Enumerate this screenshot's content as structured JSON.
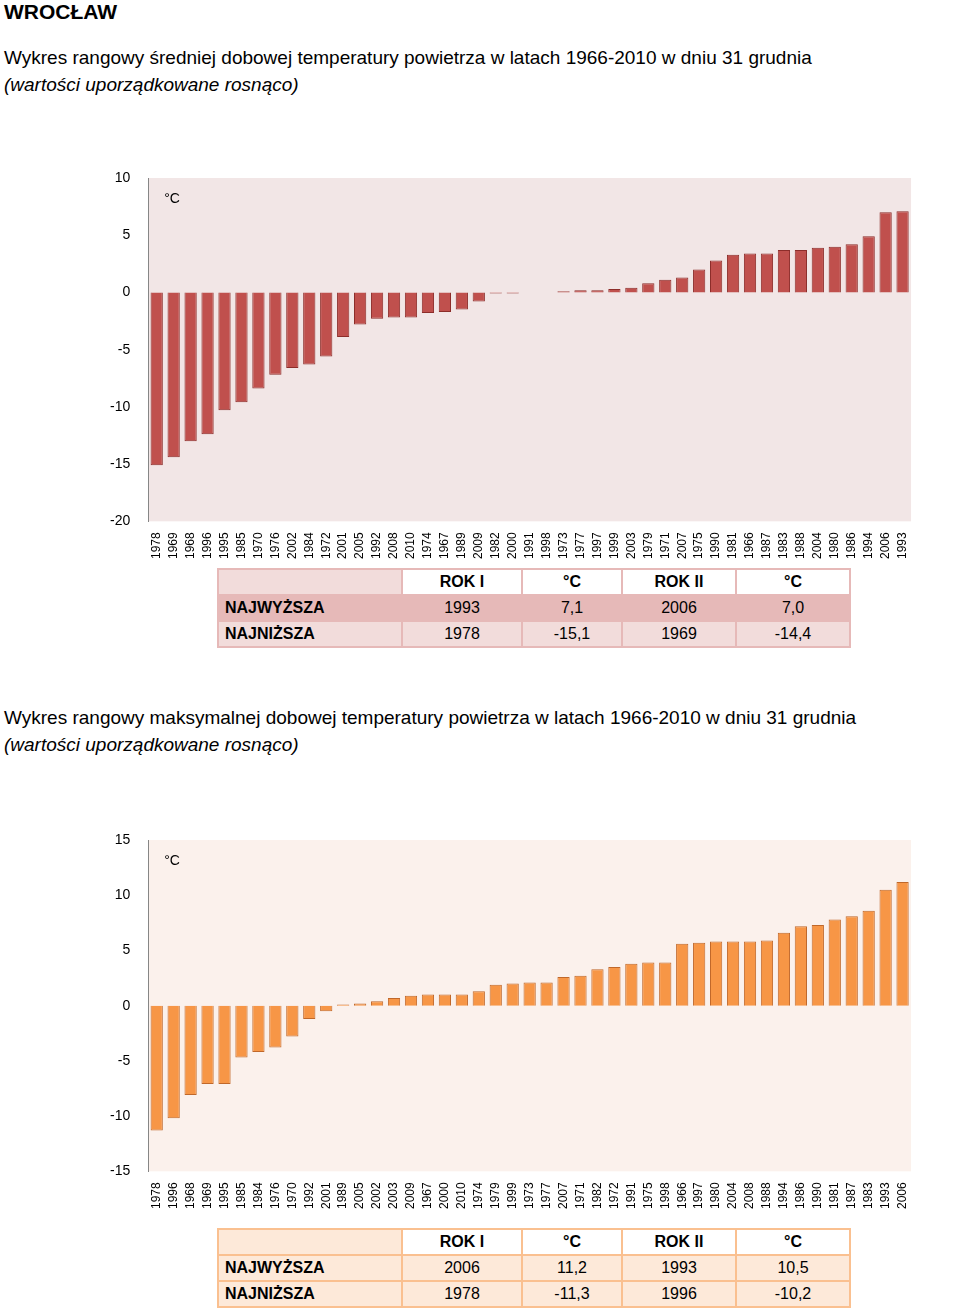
{
  "heading": "WROCŁAW",
  "chart_data": [
    {
      "type": "bar",
      "title": "Wykres rangowy średniej dobowej temperatury powietrza w latach 1966-2010 w dniu 31 grudnia",
      "subtitle": "(wartości uporządkowane rosnąco)",
      "ylabel": "°C",
      "categories": [
        "1978",
        "1969",
        "1968",
        "1996",
        "1995",
        "1985",
        "1970",
        "1976",
        "2002",
        "1984",
        "1972",
        "2001",
        "2005",
        "1992",
        "2008",
        "2010",
        "1974",
        "1967",
        "1989",
        "2009",
        "1982",
        "2000",
        "1991",
        "1998",
        "1973",
        "1977",
        "1997",
        "1999",
        "2003",
        "1979",
        "1971",
        "2007",
        "1975",
        "1990",
        "1981",
        "1966",
        "1987",
        "1983",
        "1988",
        "2004",
        "1980",
        "1986",
        "1994",
        "2006",
        "1993"
      ],
      "values": [
        -15.1,
        -14.4,
        -13.0,
        -12.4,
        -10.3,
        -9.6,
        -8.4,
        -7.2,
        -6.6,
        -6.3,
        -5.6,
        -3.9,
        -2.8,
        -2.3,
        -2.2,
        -2.2,
        -1.8,
        -1.7,
        -1.5,
        -0.8,
        -0.1,
        -0.1,
        0.0,
        0.0,
        0.1,
        0.2,
        0.2,
        0.3,
        0.4,
        0.8,
        1.1,
        1.3,
        2.0,
        2.8,
        3.3,
        3.4,
        3.4,
        3.7,
        3.7,
        3.9,
        4.0,
        4.2,
        4.9,
        7.0,
        7.1
      ],
      "color": "#c0504d",
      "ylim": [
        -20,
        10
      ],
      "yticks": [
        -20,
        -15,
        -10,
        -5,
        0,
        5,
        10
      ],
      "grid": false
    },
    {
      "type": "bar",
      "title": "Wykres rangowy maksymalnej dobowej temperatury powietrza w latach 1966-2010 w dniu 31 grudnia",
      "subtitle": "(wartości uporządkowane rosnąco)",
      "ylabel": "°C",
      "categories": [
        "1978",
        "1996",
        "1968",
        "1969",
        "1995",
        "1985",
        "1984",
        "1976",
        "1970",
        "1992",
        "2001",
        "1989",
        "2005",
        "2002",
        "2003",
        "2009",
        "1967",
        "2000",
        "2010",
        "1974",
        "1979",
        "1999",
        "1973",
        "1977",
        "2007",
        "1971",
        "1982",
        "1972",
        "1991",
        "1975",
        "1998",
        "1966",
        "1997",
        "1980",
        "2004",
        "2008",
        "1988",
        "1994",
        "1986",
        "1990",
        "1981",
        "1987",
        "1983",
        "1993",
        "2006"
      ],
      "values": [
        -11.3,
        -10.2,
        -8.1,
        -7.1,
        -7.1,
        -4.7,
        -4.2,
        -3.8,
        -2.8,
        -1.2,
        -0.5,
        0.1,
        0.2,
        0.4,
        0.7,
        0.9,
        1.0,
        1.0,
        1.0,
        1.3,
        1.9,
        2.0,
        2.1,
        2.1,
        2.6,
        2.7,
        3.3,
        3.5,
        3.8,
        3.9,
        3.9,
        5.6,
        5.7,
        5.8,
        5.8,
        5.8,
        5.9,
        6.6,
        7.2,
        7.3,
        7.8,
        8.1,
        8.6,
        10.5,
        11.2
      ],
      "color": "#f79646",
      "ylim": [
        -15,
        15
      ],
      "yticks": [
        -15,
        -10,
        -5,
        0,
        5,
        10,
        15
      ],
      "grid": false
    }
  ],
  "tables": [
    {
      "header": [
        "",
        "ROK I",
        "°C",
        "ROK II",
        "°C"
      ],
      "rows": [
        [
          "NAJWYŻSZA",
          "1993",
          "7,1",
          "2006",
          "7,0"
        ],
        [
          "NAJNIŻSZA",
          "1978",
          "-15,1",
          "1969",
          "-14,4"
        ]
      ]
    },
    {
      "header": [
        "",
        "ROK I",
        "°C",
        "ROK II",
        "°C"
      ],
      "rows": [
        [
          "NAJWYŻSZA",
          "2006",
          "11,2",
          "1993",
          "10,5"
        ],
        [
          "NAJNIŻSZA",
          "1978",
          "-11,3",
          "1996",
          "-10,2"
        ]
      ]
    }
  ]
}
